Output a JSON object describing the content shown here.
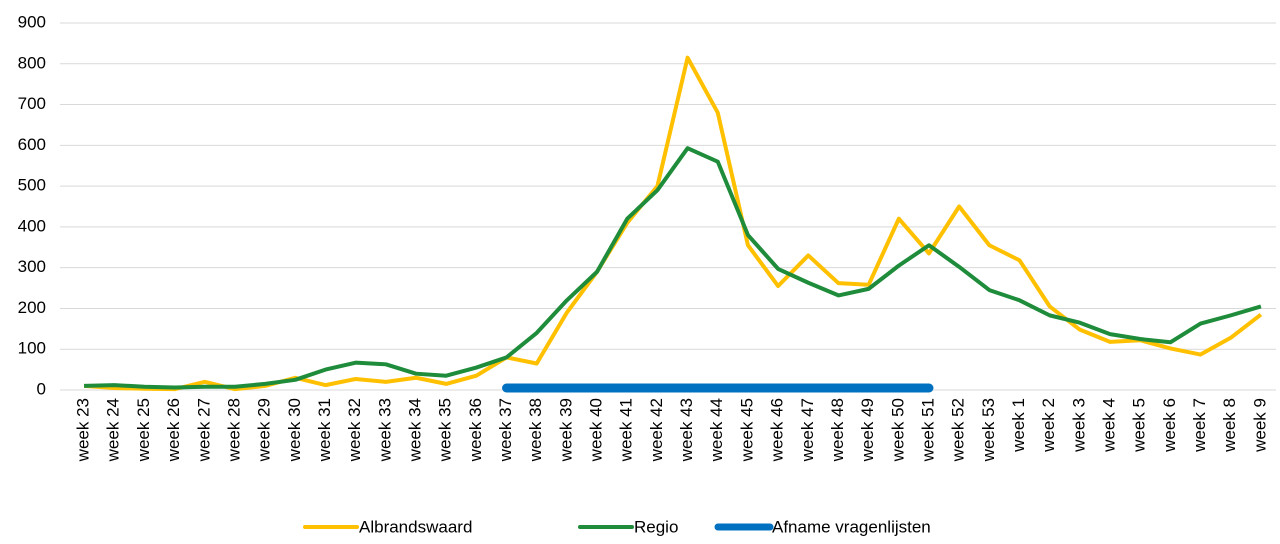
{
  "chart_data": {
    "type": "line",
    "categories": [
      "week 23",
      "week 24",
      "week 25",
      "week 26",
      "week 27",
      "week 28",
      "week 29",
      "week 30",
      "week 31",
      "week 32",
      "week 33",
      "week 34",
      "week 35",
      "week 36",
      "week 37",
      "week 38",
      "week 39",
      "week 40",
      "week 41",
      "week 42",
      "week 43",
      "week 44",
      "week 45",
      "week 46",
      "week 47",
      "week 48",
      "week 49",
      "week 50",
      "week 51",
      "week 52",
      "week 53",
      "week 1",
      "week 2",
      "week 3",
      "week 4",
      "week 5",
      "week 6",
      "week 7",
      "week 8",
      "week 9"
    ],
    "series": [
      {
        "name": "Albrandswaard",
        "color": "#ffc000",
        "values": [
          10,
          5,
          3,
          2,
          20,
          2,
          10,
          30,
          12,
          27,
          20,
          30,
          15,
          35,
          80,
          65,
          190,
          290,
          410,
          500,
          815,
          680,
          355,
          255,
          330,
          262,
          258,
          420,
          335,
          450,
          355,
          318,
          205,
          148,
          118,
          122,
          102,
          87,
          128,
          185
        ]
      },
      {
        "name": "Regio",
        "color": "#1e8c3a",
        "values": [
          10,
          12,
          8,
          6,
          8,
          8,
          15,
          25,
          50,
          67,
          63,
          40,
          35,
          55,
          80,
          140,
          220,
          290,
          420,
          490,
          593,
          560,
          380,
          297,
          263,
          232,
          248,
          305,
          355,
          302,
          245,
          220,
          183,
          165,
          137,
          125,
          117,
          163,
          183,
          205
        ]
      },
      {
        "name": "Afname vragenlijsten",
        "color": "#0070c0",
        "values": [
          null,
          null,
          null,
          null,
          null,
          null,
          null,
          null,
          null,
          null,
          null,
          null,
          null,
          null,
          0,
          0,
          0,
          0,
          0,
          0,
          0,
          0,
          0,
          0,
          0,
          0,
          0,
          0,
          0,
          null,
          null,
          null,
          null,
          null,
          null,
          null,
          null,
          null,
          null,
          null
        ]
      }
    ],
    "ylim": [
      0,
      900
    ],
    "yticks": [
      0,
      100,
      200,
      300,
      400,
      500,
      600,
      700,
      800,
      900
    ],
    "grid": true,
    "legend": "bottom"
  }
}
